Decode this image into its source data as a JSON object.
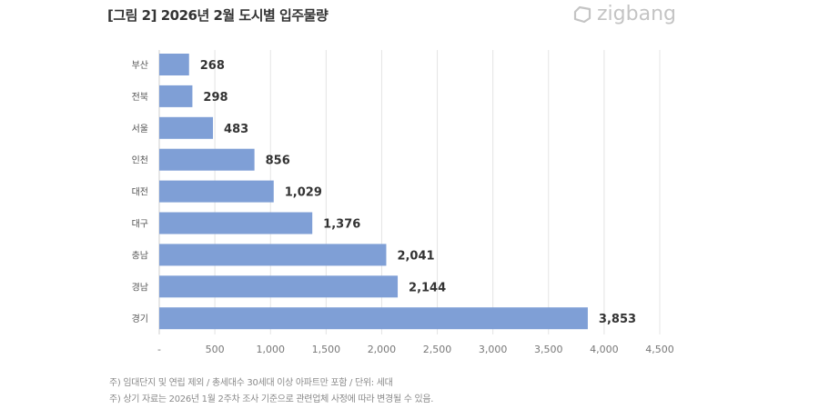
{
  "title": "[그림 2] 2026년 2월 도시별 입주물량",
  "logo": "zigbang",
  "chart_data": {
    "type": "bar",
    "orientation": "horizontal",
    "categories": [
      "부산",
      "전북",
      "서울",
      "인천",
      "대전",
      "대구",
      "충남",
      "경남",
      "경기"
    ],
    "values": [
      268,
      298,
      483,
      856,
      1029,
      1376,
      2041,
      2144,
      3853
    ],
    "data_labels": [
      "268",
      "298",
      "483",
      "856",
      "1,029",
      "1,376",
      "2,041",
      "2,144",
      "3,853"
    ],
    "xlim": [
      0,
      4500
    ],
    "xticks": [
      "-",
      "500",
      "1,000",
      "1,500",
      "2,000",
      "2,500",
      "3,000",
      "3,500",
      "4,000",
      "4,500"
    ],
    "grid": true,
    "bar_color": "#7f9fd6"
  },
  "notes": [
    "주) 임대단지 및 연립 제외 / 총세대수 30세대 이상 아파트만 포함 / 단위: 세대",
    "주) 상기 자료는 2026년 1월 2주차 조사 기준으로 관련업체 사정에 따라 변경될 수 있음."
  ]
}
